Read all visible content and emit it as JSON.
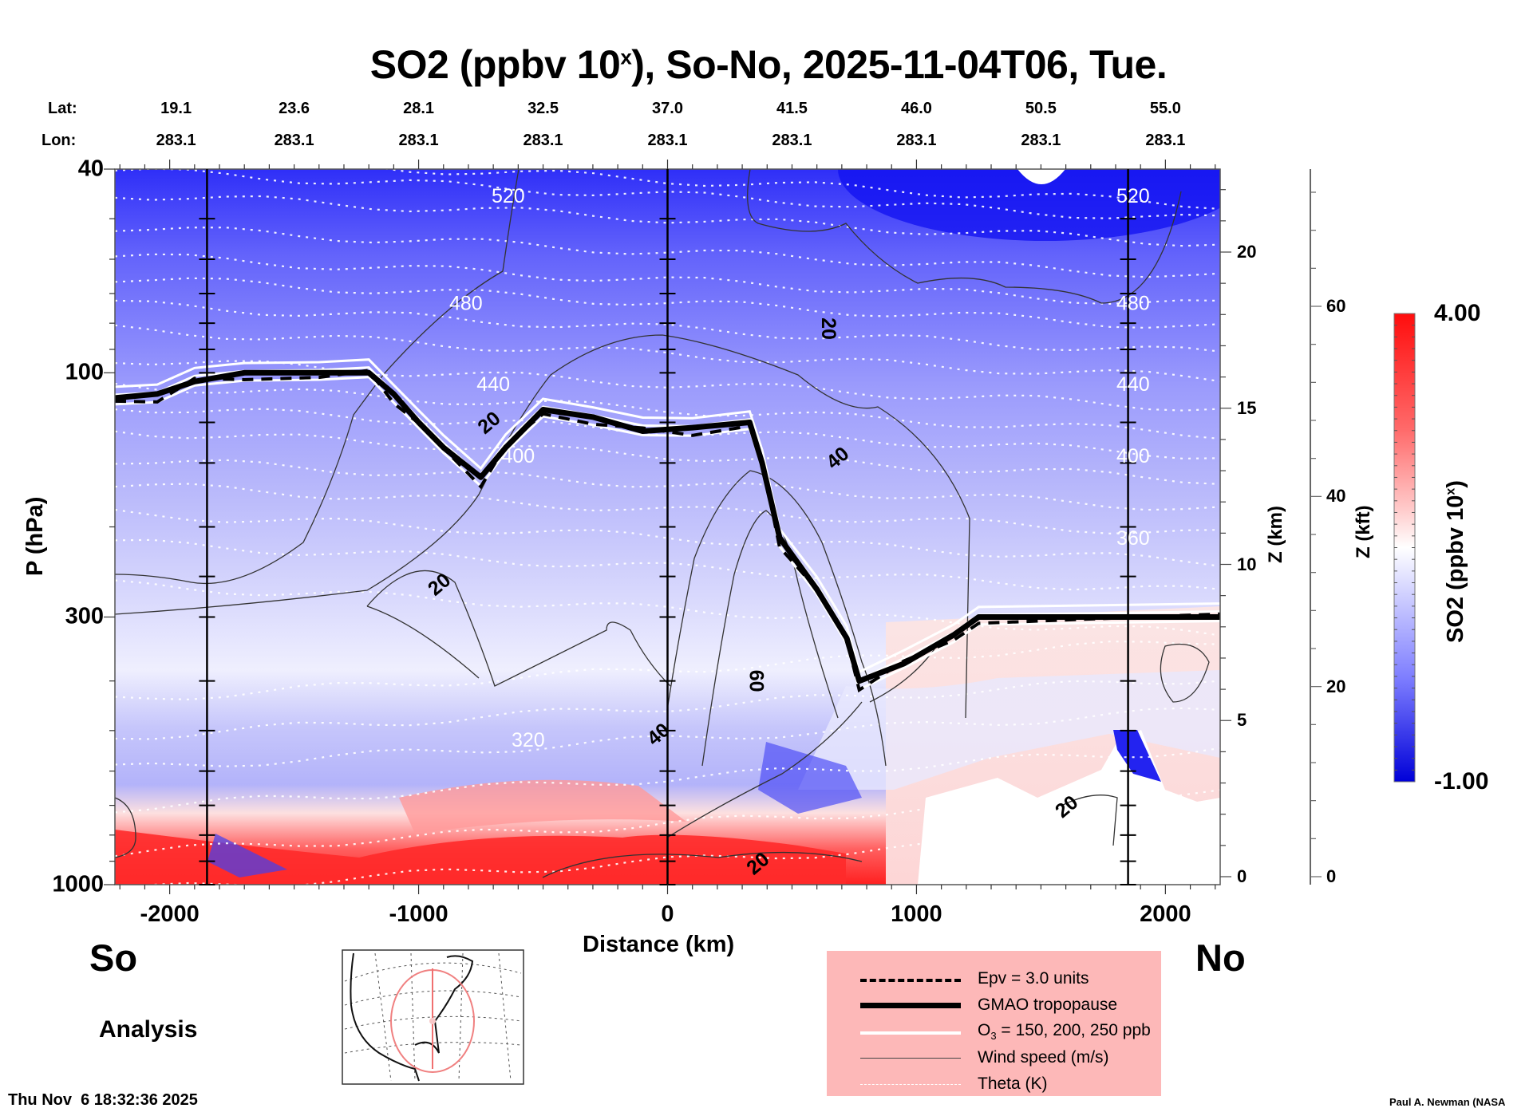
{
  "chart_data": {
    "type": "heatmap",
    "title": "SO2 (ppbv 10",
    "title_sup": "x",
    "title_suffix": "), So-No, 2025-11-04T06, Tue.",
    "xlabel": "Distance (km)",
    "ylabel": "P (hPa)",
    "xlim": [
      -2220,
      2220
    ],
    "ylim_hpa": [
      1000,
      40
    ],
    "y_scale": "log",
    "x_ticks": [
      -2000,
      -1000,
      0,
      1000,
      2000
    ],
    "x_tick_labels": [
      "-2000",
      "-1000",
      "0",
      "1000",
      "2000"
    ],
    "y_ticks_hpa": [
      40,
      100,
      300,
      1000
    ],
    "y_tick_labels": [
      "40",
      "100",
      "300",
      "1000"
    ],
    "section_markers_km": [
      -1850,
      0,
      1850
    ],
    "lat_label": "Lat:",
    "lon_label": "Lon:",
    "lat_values": [
      "19.1",
      "23.6",
      "28.1",
      "32.5",
      "37.0",
      "41.5",
      "46.0",
      "50.5",
      "55.0"
    ],
    "lon_values": [
      "283.1",
      "283.1",
      "283.1",
      "283.1",
      "283.1",
      "283.1",
      "283.1",
      "283.1",
      "283.1"
    ],
    "coord_positions_km": [
      -2000,
      -1500,
      -1000,
      -500,
      0,
      500,
      1000,
      1500,
      2000
    ],
    "z_km_axis": {
      "label": "Z (km)",
      "ticks": [
        0,
        5,
        10,
        15,
        20
      ],
      "tick_labels": [
        "0",
        "5",
        "10",
        "15",
        "20"
      ]
    },
    "z_kft_axis": {
      "label": "Z (kft)",
      "ticks": [
        0,
        20,
        40,
        60
      ],
      "tick_labels": [
        "0",
        "20",
        "40",
        "60"
      ]
    },
    "colorbar": {
      "label": "SO2 (ppbv 10",
      "label_sup": "x",
      "label_suffix": ")",
      "min": -1.0,
      "max": 4.0,
      "min_label": "-1.00",
      "max_label": "4.00",
      "colors": [
        "#0000e6",
        "#4040ff",
        "#8a8aff",
        "#c8c8ff",
        "#ffffff",
        "#ffc8c8",
        "#ff8a8a",
        "#ff4040",
        "#ff0000"
      ]
    },
    "theta_contours_K": [
      {
        "value": 320,
        "label": "320",
        "p_hpa": 520
      },
      {
        "value": 360,
        "label": "360",
        "p_hpa": 210
      },
      {
        "value": 400,
        "label": "400",
        "p_hpa": 145
      },
      {
        "value": 440,
        "label": "440",
        "p_hpa": 105
      },
      {
        "value": 480,
        "label": "480",
        "p_hpa": 73
      },
      {
        "value": 520,
        "label": "520",
        "p_hpa": 45
      }
    ],
    "theta_levels_unlabeled_hpa": [
      42,
      50,
      58,
      66,
      82,
      92,
      118,
      130,
      165,
      185,
      240,
      290,
      380,
      450,
      620,
      760,
      900
    ],
    "wind_speed_labels": [
      {
        "label": "20",
        "x_km": -900,
        "p_hpa": 265
      },
      {
        "label": "20",
        "x_km": -700,
        "p_hpa": 128
      },
      {
        "label": "20",
        "x_km": 620,
        "p_hpa": 82
      },
      {
        "label": "40",
        "x_km": 700,
        "p_hpa": 150
      },
      {
        "label": "60",
        "x_km": 330,
        "p_hpa": 400
      },
      {
        "label": "40",
        "x_km": -20,
        "p_hpa": 520
      },
      {
        "label": "20",
        "x_km": 380,
        "p_hpa": 930
      },
      {
        "label": "20",
        "x_km": 1620,
        "p_hpa": 720
      }
    ],
    "tropopause_hpa": [
      {
        "x_km": -2220,
        "p": 112
      },
      {
        "x_km": -2050,
        "p": 110
      },
      {
        "x_km": -1900,
        "p": 104
      },
      {
        "x_km": -1700,
        "p": 100
      },
      {
        "x_km": -1400,
        "p": 100
      },
      {
        "x_km": -1200,
        "p": 100
      },
      {
        "x_km": -1100,
        "p": 110
      },
      {
        "x_km": -1000,
        "p": 125
      },
      {
        "x_km": -900,
        "p": 140
      },
      {
        "x_km": -750,
        "p": 160
      },
      {
        "x_km": -650,
        "p": 140
      },
      {
        "x_km": -500,
        "p": 118
      },
      {
        "x_km": -300,
        "p": 122
      },
      {
        "x_km": -100,
        "p": 130
      },
      {
        "x_km": 100,
        "p": 128
      },
      {
        "x_km": 330,
        "p": 125
      },
      {
        "x_km": 380,
        "p": 150
      },
      {
        "x_km": 450,
        "p": 210
      },
      {
        "x_km": 600,
        "p": 265
      },
      {
        "x_km": 720,
        "p": 330
      },
      {
        "x_km": 770,
        "p": 400
      },
      {
        "x_km": 950,
        "p": 370
      },
      {
        "x_km": 1150,
        "p": 325
      },
      {
        "x_km": 1250,
        "p": 300
      },
      {
        "x_km": 2220,
        "p": 300
      }
    ],
    "legend": [
      {
        "label": "Epv = 3.0 units",
        "style": "dashed-thick"
      },
      {
        "label": "GMAO tropopause",
        "style": "solid-thick"
      },
      {
        "label": "O",
        "sub": "3",
        "suffix": " = 150, 200, 250 ppb",
        "style": "solid-white"
      },
      {
        "label": "Wind speed (m/s)",
        "style": "solid-thin"
      },
      {
        "label": "Theta (K)",
        "style": "dotted-white"
      }
    ]
  },
  "labels": {
    "south": "So",
    "north": "No",
    "analysis": "Analysis",
    "timestamp": "Thu Nov  6 18:32:36 2025",
    "credit": "Paul A. Newman (NASA"
  }
}
